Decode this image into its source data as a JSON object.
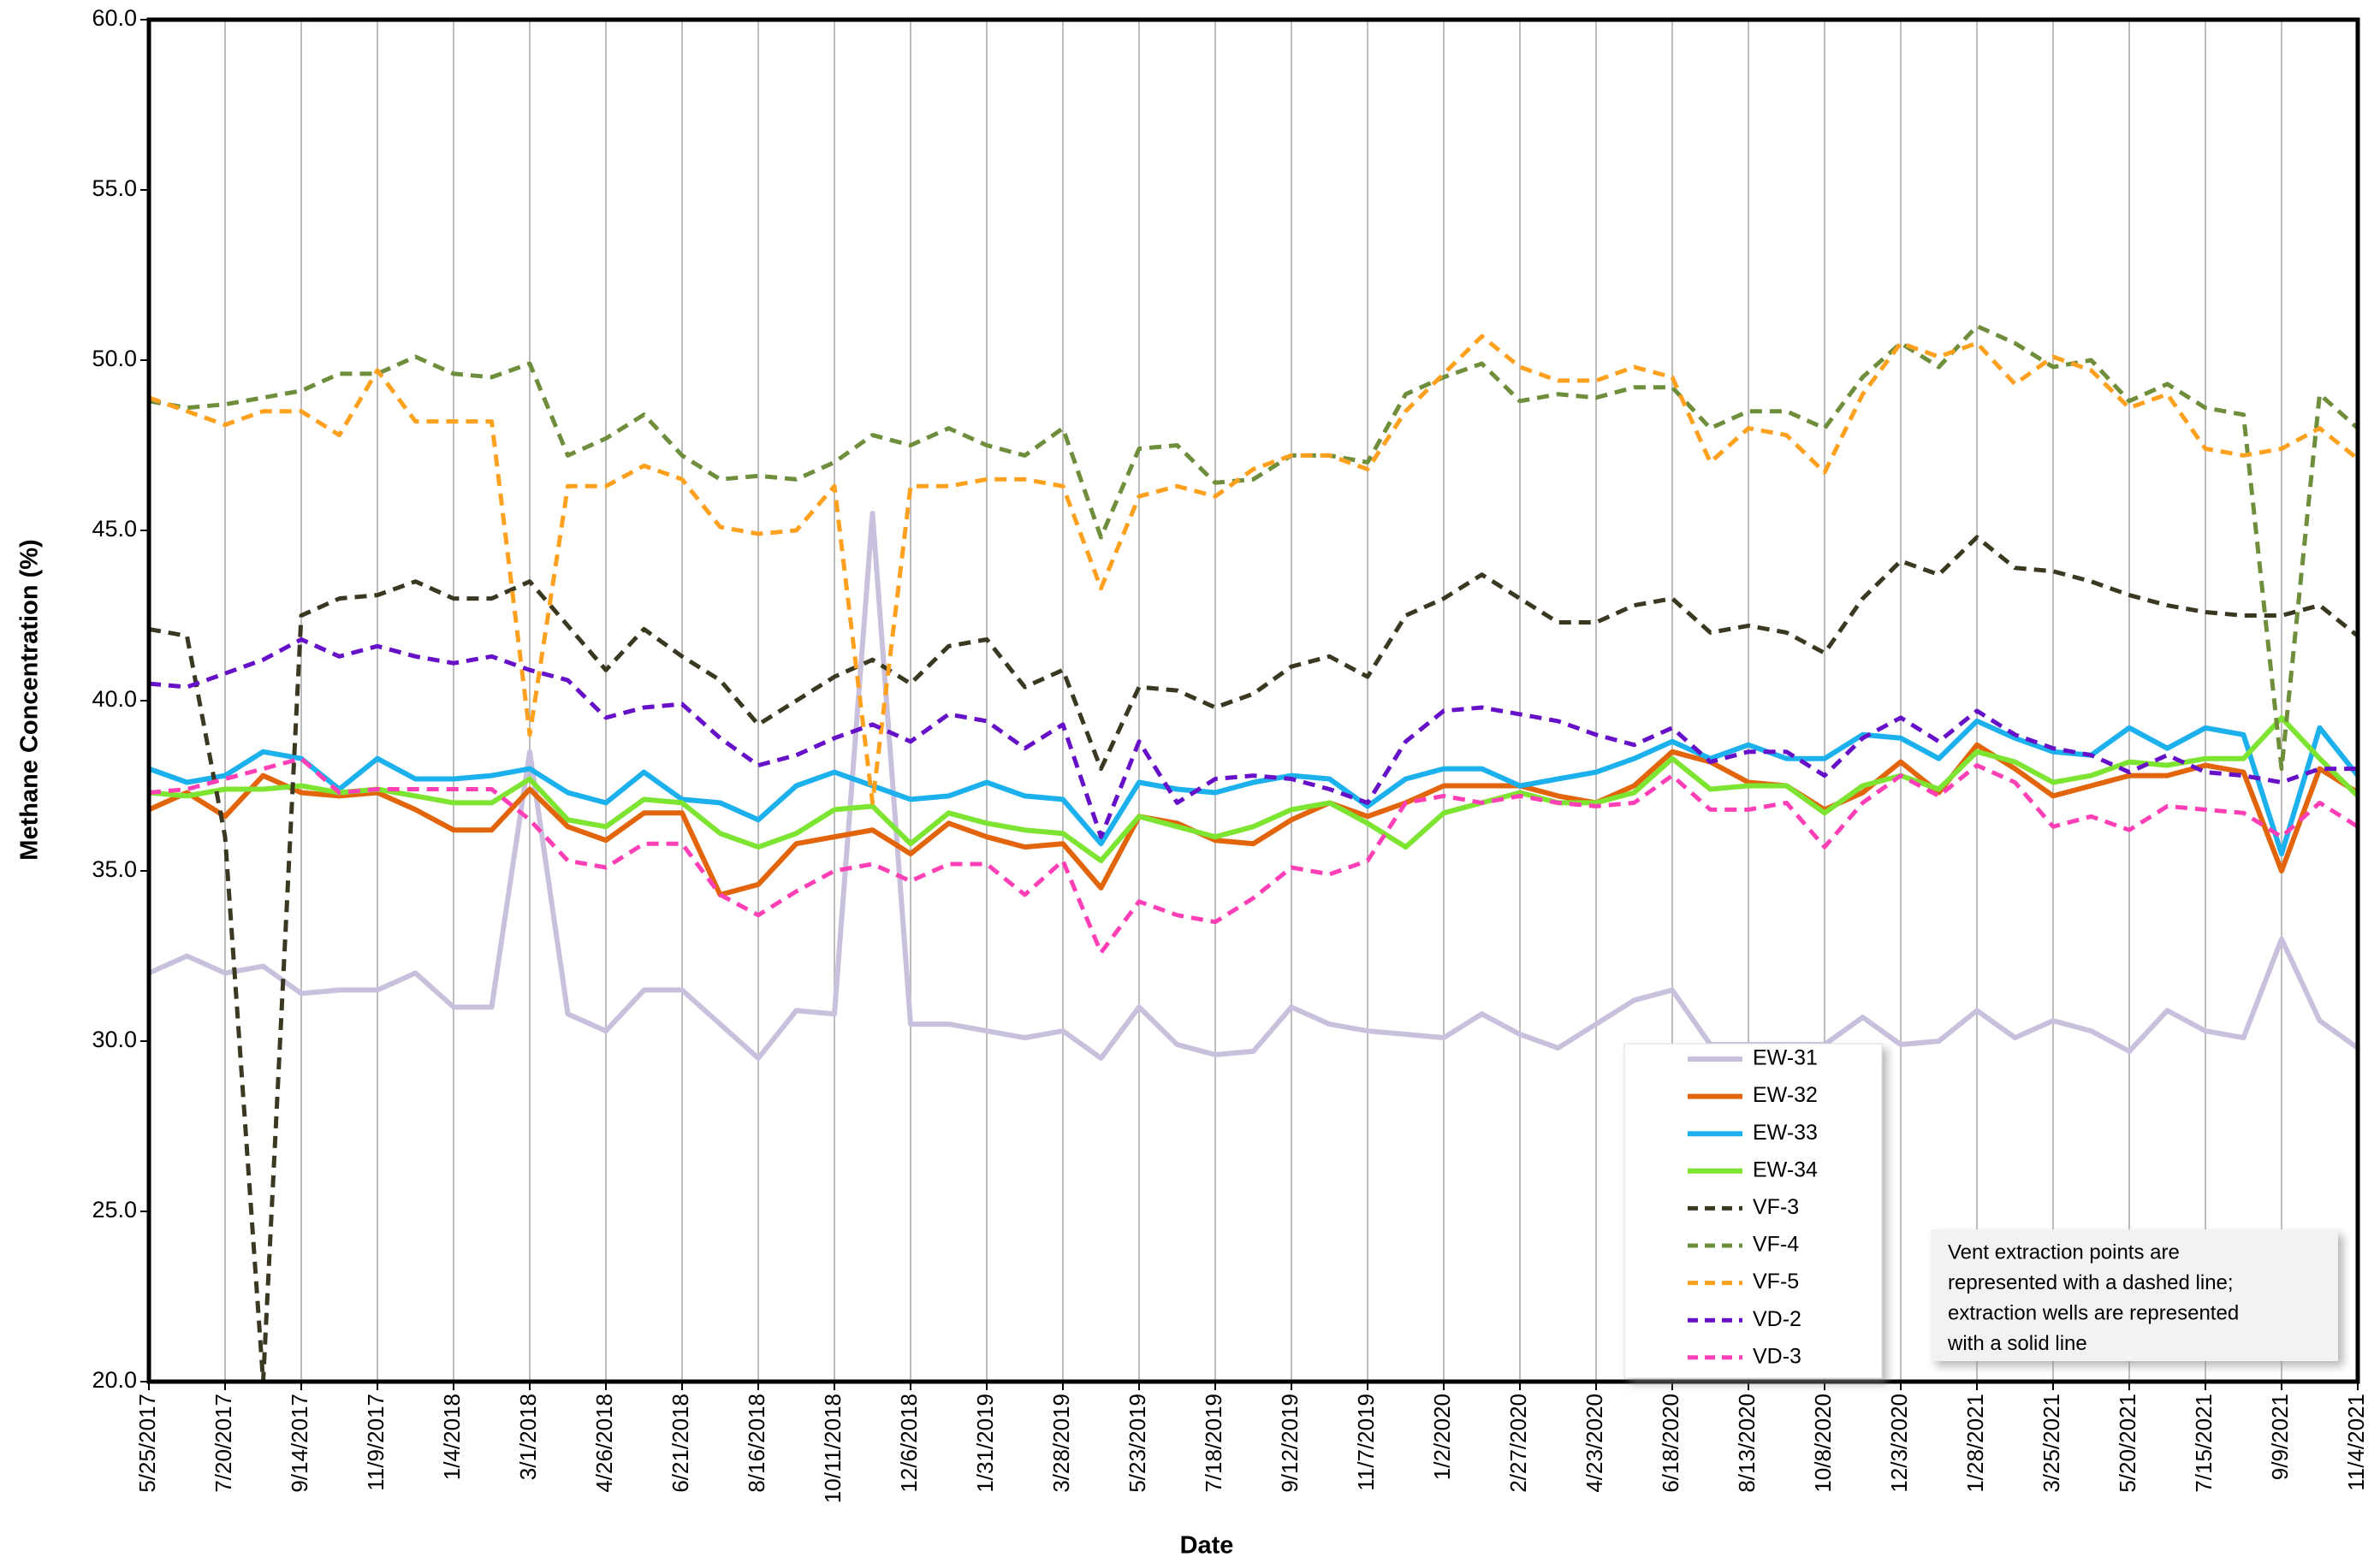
{
  "chart_data": {
    "type": "line",
    "y_label": "Methane Concentration (%)",
    "x_label": "Date",
    "ylim": [
      20,
      60
    ],
    "yticks": [
      {
        "value": 20,
        "label": "20.0"
      },
      {
        "value": 25,
        "label": "25.0"
      },
      {
        "value": 30,
        "label": "30.0"
      },
      {
        "value": 35,
        "label": "35.0"
      },
      {
        "value": 40,
        "label": "40.0"
      },
      {
        "value": 45,
        "label": "45.0"
      },
      {
        "value": 50,
        "label": "50.0"
      },
      {
        "value": 55,
        "label": "55.0"
      },
      {
        "value": 60,
        "label": "60.0"
      }
    ],
    "xlim": [
      "5/25/2017",
      "11/4/2021"
    ],
    "xticks": [
      "5/25/2017",
      "7/20/2017",
      "9/14/2017",
      "11/9/2017",
      "1/4/2018",
      "3/1/2018",
      "4/26/2018",
      "6/21/2018",
      "8/16/2018",
      "10/11/2018",
      "12/6/2018",
      "1/31/2019",
      "3/28/2019",
      "5/23/2019",
      "7/18/2019",
      "9/12/2019",
      "11/7/2019",
      "1/2/2020",
      "2/27/2020",
      "4/23/2020",
      "6/18/2020",
      "8/13/2020",
      "10/8/2020",
      "12/3/2020",
      "1/28/2021",
      "3/25/2021",
      "5/20/2021",
      "7/15/2021",
      "9/9/2021",
      "11/4/2021"
    ],
    "grid": true,
    "legend_position": "lower-right",
    "x": [
      "5/25/2017",
      "6/22/2017",
      "7/20/2017",
      "8/17/2017",
      "9/14/2017",
      "10/12/2017",
      "11/9/2017",
      "12/7/2017",
      "1/4/2018",
      "2/1/2018",
      "3/1/2018",
      "3/29/2018",
      "4/26/2018",
      "5/24/2018",
      "6/21/2018",
      "7/19/2018",
      "8/16/2018",
      "9/13/2018",
      "10/11/2018",
      "11/8/2018",
      "12/6/2018",
      "1/3/2019",
      "1/31/2019",
      "2/28/2019",
      "3/28/2019",
      "4/25/2019",
      "5/23/2019",
      "6/20/2019",
      "7/18/2019",
      "8/15/2019",
      "9/12/2019",
      "10/10/2019",
      "11/7/2019",
      "12/5/2019",
      "1/2/2020",
      "1/30/2020",
      "2/27/2020",
      "3/26/2020",
      "4/23/2020",
      "5/21/2020",
      "6/18/2020",
      "7/16/2020",
      "8/13/2020",
      "9/10/2020",
      "10/8/2020",
      "11/5/2020",
      "12/3/2020",
      "12/31/2020",
      "1/28/2021",
      "2/25/2021",
      "3/25/2021",
      "4/22/2021",
      "5/20/2021",
      "6/17/2021",
      "7/15/2021",
      "8/12/2021",
      "9/9/2021",
      "10/7/2021",
      "11/4/2021"
    ],
    "series": [
      {
        "name": "EW-31",
        "color": "#c9c0dd",
        "dashed": false,
        "values": [
          32.0,
          32.5,
          32.0,
          32.2,
          31.4,
          31.5,
          31.5,
          32.0,
          31.0,
          31.0,
          38.5,
          30.8,
          30.3,
          31.5,
          31.5,
          30.5,
          29.5,
          30.9,
          30.8,
          45.5,
          30.5,
          30.5,
          30.3,
          30.1,
          30.3,
          29.5,
          31.0,
          29.9,
          29.6,
          29.7,
          31.0,
          30.5,
          30.3,
          30.2,
          30.1,
          30.8,
          30.2,
          29.8,
          30.5,
          31.2,
          31.5,
          29.9,
          29.9,
          29.9,
          29.9,
          30.7,
          29.9,
          30.0,
          30.9,
          30.1,
          30.6,
          30.3,
          29.7,
          30.9,
          30.3,
          30.1,
          33.0,
          30.6,
          29.8
        ]
      },
      {
        "name": "EW-32",
        "color": "#e2650c",
        "dashed": false,
        "values": [
          36.8,
          37.3,
          36.6,
          37.8,
          37.3,
          37.2,
          37.3,
          36.8,
          36.2,
          36.2,
          37.4,
          36.3,
          35.9,
          36.7,
          36.7,
          34.3,
          34.6,
          35.8,
          36.0,
          36.2,
          35.5,
          36.4,
          36.0,
          35.7,
          35.8,
          34.5,
          36.6,
          36.4,
          35.9,
          35.8,
          36.5,
          37.0,
          36.6,
          37.0,
          37.5,
          37.5,
          37.5,
          37.2,
          37.0,
          37.5,
          38.5,
          38.2,
          37.6,
          37.5,
          36.8,
          37.3,
          38.2,
          37.3,
          38.7,
          38.0,
          37.2,
          37.5,
          37.8,
          37.8,
          38.1,
          37.9,
          35.0,
          38.0,
          37.3
        ]
      },
      {
        "name": "EW-33",
        "color": "#1cb0ec",
        "dashed": false,
        "values": [
          38.0,
          37.6,
          37.8,
          38.5,
          38.3,
          37.4,
          38.3,
          37.7,
          37.7,
          37.8,
          38.0,
          37.3,
          37.0,
          37.9,
          37.1,
          37.0,
          36.5,
          37.5,
          37.9,
          37.5,
          37.1,
          37.2,
          37.6,
          37.2,
          37.1,
          35.8,
          37.6,
          37.4,
          37.3,
          37.6,
          37.8,
          37.7,
          36.9,
          37.7,
          38.0,
          38.0,
          37.5,
          37.7,
          37.9,
          38.3,
          38.8,
          38.3,
          38.7,
          38.3,
          38.3,
          39.0,
          38.9,
          38.3,
          39.4,
          38.9,
          38.5,
          38.4,
          39.2,
          38.6,
          39.2,
          39.0,
          35.5,
          39.2,
          37.8
        ]
      },
      {
        "name": "EW-34",
        "color": "#7ee432",
        "dashed": false,
        "values": [
          37.3,
          37.2,
          37.4,
          37.4,
          37.5,
          37.3,
          37.4,
          37.2,
          37.0,
          37.0,
          37.7,
          36.5,
          36.3,
          37.1,
          37.0,
          36.1,
          35.7,
          36.1,
          36.8,
          36.9,
          35.8,
          36.7,
          36.4,
          36.2,
          36.1,
          35.3,
          36.6,
          36.3,
          36.0,
          36.3,
          36.8,
          37.0,
          36.4,
          35.7,
          36.7,
          37.0,
          37.3,
          37.0,
          37.0,
          37.3,
          38.3,
          37.4,
          37.5,
          37.5,
          36.7,
          37.5,
          37.8,
          37.4,
          38.5,
          38.2,
          37.6,
          37.8,
          38.2,
          38.1,
          38.3,
          38.3,
          39.5,
          38.3,
          37.2
        ]
      },
      {
        "name": "VF-3",
        "color": "#3b3822",
        "dashed": true,
        "values": [
          42.1,
          41.9,
          36.0,
          20.0,
          42.5,
          43.0,
          43.1,
          43.5,
          43.0,
          43.0,
          43.5,
          42.2,
          40.9,
          42.1,
          41.3,
          40.6,
          39.3,
          40.0,
          40.7,
          41.2,
          40.5,
          41.6,
          41.8,
          40.4,
          40.9,
          38.0,
          40.4,
          40.3,
          39.8,
          40.2,
          41.0,
          41.3,
          40.7,
          42.5,
          43.0,
          43.7,
          43.0,
          42.3,
          42.3,
          42.8,
          43.0,
          42.0,
          42.2,
          42.0,
          41.4,
          43.0,
          44.1,
          43.7,
          44.8,
          43.9,
          43.8,
          43.5,
          43.1,
          42.8,
          42.6,
          42.5,
          42.5,
          42.8,
          41.9
        ]
      },
      {
        "name": "VF-4",
        "color": "#6e8e3c",
        "dashed": true,
        "values": [
          48.8,
          48.6,
          48.7,
          48.9,
          49.1,
          49.6,
          49.6,
          50.1,
          49.6,
          49.5,
          49.9,
          47.2,
          47.7,
          48.4,
          47.2,
          46.5,
          46.6,
          46.5,
          47.0,
          47.8,
          47.5,
          48.0,
          47.5,
          47.2,
          48.0,
          44.8,
          47.4,
          47.5,
          46.4,
          46.5,
          47.2,
          47.2,
          47.0,
          49.0,
          49.5,
          49.9,
          48.8,
          49.0,
          48.9,
          49.2,
          49.2,
          48.0,
          48.5,
          48.5,
          48.0,
          49.5,
          50.5,
          49.8,
          51.0,
          50.5,
          49.8,
          50.0,
          48.8,
          49.3,
          48.6,
          48.4,
          38.0,
          49.0,
          48.0
        ]
      },
      {
        "name": "VF-5",
        "color": "#ffa11e",
        "dashed": true,
        "values": [
          48.9,
          48.5,
          48.1,
          48.5,
          48.5,
          47.8,
          49.7,
          48.2,
          48.2,
          48.2,
          39.0,
          46.3,
          46.3,
          46.9,
          46.5,
          45.1,
          44.9,
          45.0,
          46.3,
          37.0,
          46.3,
          46.3,
          46.5,
          46.5,
          46.3,
          43.3,
          46.0,
          46.3,
          46.0,
          46.8,
          47.2,
          47.2,
          46.8,
          48.5,
          49.6,
          50.7,
          49.8,
          49.4,
          49.4,
          49.8,
          49.5,
          47.0,
          48.0,
          47.8,
          46.7,
          49.0,
          50.5,
          50.1,
          50.5,
          49.3,
          50.1,
          49.7,
          48.6,
          49.0,
          47.4,
          47.2,
          47.4,
          48.0,
          47.1
        ]
      },
      {
        "name": "VD-2",
        "color": "#6610c8",
        "dashed": true,
        "values": [
          40.5,
          40.4,
          40.8,
          41.2,
          41.8,
          41.3,
          41.6,
          41.3,
          41.1,
          41.3,
          40.9,
          40.6,
          39.5,
          39.8,
          39.9,
          38.9,
          38.1,
          38.4,
          38.9,
          39.3,
          38.8,
          39.6,
          39.4,
          38.6,
          39.3,
          36.0,
          38.8,
          37.0,
          37.7,
          37.8,
          37.7,
          37.4,
          37.0,
          38.8,
          39.7,
          39.8,
          39.6,
          39.4,
          39.0,
          38.7,
          39.2,
          38.2,
          38.5,
          38.5,
          37.8,
          38.9,
          39.5,
          38.8,
          39.7,
          39.0,
          38.6,
          38.4,
          37.9,
          38.4,
          37.9,
          37.8,
          37.6,
          38.0,
          38.0
        ]
      },
      {
        "name": "VD-3",
        "color": "#ff3fb6",
        "dashed": true,
        "values": [
          37.3,
          37.4,
          37.7,
          38.0,
          38.3,
          37.3,
          37.4,
          37.4,
          37.4,
          37.4,
          36.5,
          35.3,
          35.1,
          35.8,
          35.8,
          34.3,
          33.7,
          34.4,
          35.0,
          35.2,
          34.7,
          35.2,
          35.2,
          34.3,
          35.3,
          32.6,
          34.1,
          33.7,
          33.5,
          34.2,
          35.1,
          34.9,
          35.3,
          37.0,
          37.2,
          37.0,
          37.2,
          37.0,
          36.9,
          37.0,
          37.8,
          36.8,
          36.8,
          37.0,
          35.7,
          37.0,
          37.8,
          37.2,
          38.1,
          37.6,
          36.3,
          36.6,
          36.2,
          36.9,
          36.8,
          36.7,
          36.0,
          37.0,
          36.3
        ]
      }
    ],
    "annotation": [
      "Vent extraction points are",
      "represented with a dashed line;",
      "extraction wells are  represented",
      "with a solid line"
    ]
  }
}
